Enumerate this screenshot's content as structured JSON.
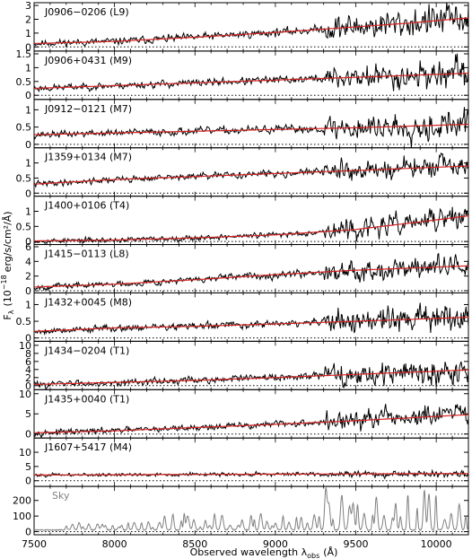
{
  "chart_data": {
    "type": "line",
    "figure_note": "",
    "xlabel_main": "Observed wavelength λ",
    "xlabel_sub": "obs",
    "xlabel_unit": "(Å)",
    "ylabel_main": "F",
    "ylabel_sub": "λ",
    "ylabel_rest": "(10",
    "ylabel_exp": "−18",
    "ylabel_unit": "erg/s/cm²/Å)",
    "xlim": [
      7500,
      10200
    ],
    "xticks": [
      7500,
      8000,
      8500,
      9000,
      9500,
      10000
    ],
    "colors": {
      "spectrum": "#000000",
      "model": "#d62020",
      "sky": "#808080",
      "zero": "#000000"
    },
    "panels": [
      {
        "id": "J0906-0206",
        "label": "J0906−0206 (L9)",
        "ylim": [
          -0.3,
          3.2
        ],
        "yticks": [
          0,
          1,
          2,
          3
        ],
        "model": [
          [
            7500,
            0.25
          ],
          [
            8000,
            0.4
          ],
          [
            8500,
            0.7
          ],
          [
            9000,
            1.05
          ],
          [
            9500,
            1.45
          ],
          [
            9800,
            1.7
          ],
          [
            10200,
            2.1
          ]
        ],
        "noise": [
          [
            7500,
            0.25
          ],
          [
            9300,
            0.3
          ],
          [
            9301,
            0.9
          ],
          [
            10200,
            1.2
          ]
        ],
        "seed": 11
      },
      {
        "id": "J0906+0431",
        "label": "J0906+0431 (M9)",
        "ylim": [
          -0.15,
          1.6
        ],
        "yticks": [
          0,
          0.5,
          1,
          1.5
        ],
        "model": [
          [
            7500,
            0.25
          ],
          [
            8000,
            0.35
          ],
          [
            8500,
            0.45
          ],
          [
            9000,
            0.55
          ],
          [
            9500,
            0.65
          ],
          [
            10200,
            0.8
          ]
        ],
        "noise": [
          [
            7500,
            0.12
          ],
          [
            9300,
            0.15
          ],
          [
            9301,
            0.4
          ],
          [
            10200,
            0.55
          ]
        ],
        "seed": 23
      },
      {
        "id": "J0912-0121",
        "label": "J0912−0121 (M7)",
        "ylim": [
          -0.1,
          1.3
        ],
        "yticks": [
          0,
          0.5,
          1
        ],
        "model": [
          [
            7500,
            0.28
          ],
          [
            8000,
            0.33
          ],
          [
            8500,
            0.38
          ],
          [
            9000,
            0.43
          ],
          [
            9500,
            0.48
          ],
          [
            10200,
            0.58
          ]
        ],
        "noise": [
          [
            7500,
            0.1
          ],
          [
            9300,
            0.12
          ],
          [
            9301,
            0.35
          ],
          [
            10200,
            0.45
          ]
        ],
        "seed": 37
      },
      {
        "id": "J1359+0134",
        "label": "J1359+0134 (M7)",
        "ylim": [
          -0.1,
          1.5
        ],
        "yticks": [
          0,
          0.5,
          1
        ],
        "model": [
          [
            7500,
            0.3
          ],
          [
            8000,
            0.45
          ],
          [
            8500,
            0.55
          ],
          [
            9000,
            0.65
          ],
          [
            9500,
            0.75
          ],
          [
            10200,
            0.9
          ]
        ],
        "noise": [
          [
            7500,
            0.1
          ],
          [
            9300,
            0.12
          ],
          [
            9301,
            0.3
          ],
          [
            10200,
            0.4
          ]
        ],
        "seed": 41
      },
      {
        "id": "J1400+0106",
        "label": "J1400+0106 (T4)",
        "ylim": [
          -0.1,
          1.5
        ],
        "yticks": [
          0,
          0.5,
          1
        ],
        "model": [
          [
            7500,
            0.02
          ],
          [
            8000,
            0.05
          ],
          [
            8500,
            0.12
          ],
          [
            9000,
            0.22
          ],
          [
            9500,
            0.4
          ],
          [
            9900,
            0.65
          ],
          [
            10200,
            0.85
          ]
        ],
        "noise": [
          [
            7500,
            0.08
          ],
          [
            9300,
            0.1
          ],
          [
            9301,
            0.3
          ],
          [
            10200,
            0.4
          ]
        ],
        "seed": 53
      },
      {
        "id": "J1415-0113",
        "label": "J1415−0113 (L8)",
        "ylim": [
          -0.3,
          6.3
        ],
        "yticks": [
          0,
          2,
          4,
          6
        ],
        "model": [
          [
            7500,
            0.5
          ],
          [
            8000,
            0.9
          ],
          [
            8500,
            1.5
          ],
          [
            9000,
            2.2
          ],
          [
            9500,
            2.8
          ],
          [
            10200,
            3.4
          ]
        ],
        "noise": [
          [
            7500,
            0.4
          ],
          [
            9300,
            0.5
          ],
          [
            9301,
            1.2
          ],
          [
            10200,
            1.6
          ]
        ],
        "seed": 67
      },
      {
        "id": "J1432+0045",
        "label": "J1432+0045 (M8)",
        "ylim": [
          -0.1,
          1.35
        ],
        "yticks": [
          0,
          0.5,
          1
        ],
        "model": [
          [
            7500,
            0.2
          ],
          [
            8000,
            0.3
          ],
          [
            8500,
            0.35
          ],
          [
            9000,
            0.42
          ],
          [
            9500,
            0.5
          ],
          [
            10200,
            0.62
          ]
        ],
        "noise": [
          [
            7500,
            0.1
          ],
          [
            9300,
            0.12
          ],
          [
            9301,
            0.35
          ],
          [
            10200,
            0.45
          ]
        ],
        "seed": 79
      },
      {
        "id": "J1434-0204",
        "label": "J1434−0204 (T1)",
        "ylim": [
          -1,
          11
        ],
        "yticks": [
          0,
          2,
          4,
          6,
          8,
          10
        ],
        "model": [
          [
            7500,
            0.3
          ],
          [
            8000,
            0.8
          ],
          [
            8500,
            1.3
          ],
          [
            9000,
            2.0
          ],
          [
            9500,
            2.8
          ],
          [
            10200,
            3.9
          ]
        ],
        "noise": [
          [
            7500,
            0.8
          ],
          [
            9300,
            1.0
          ],
          [
            9301,
            2.6
          ],
          [
            10200,
            3.2
          ]
        ],
        "seed": 83
      },
      {
        "id": "J1435+0040",
        "label": "J1435+0040 (T1)",
        "ylim": [
          -1,
          11
        ],
        "yticks": [
          0,
          5,
          10
        ],
        "model": [
          [
            7500,
            0.3
          ],
          [
            8000,
            0.8
          ],
          [
            8500,
            1.6
          ],
          [
            9000,
            2.4
          ],
          [
            9500,
            3.3
          ],
          [
            10200,
            4.8
          ]
        ],
        "noise": [
          [
            7500,
            0.7
          ],
          [
            9300,
            0.9
          ],
          [
            9301,
            2.4
          ],
          [
            10200,
            3.0
          ]
        ],
        "seed": 97
      },
      {
        "id": "J1607+5417",
        "label": "J1607+5417 (M4)",
        "ylim": [
          -2,
          15
        ],
        "yticks": [
          0,
          5,
          10
        ],
        "model": [
          [
            7500,
            2.0
          ],
          [
            8000,
            2.1
          ],
          [
            8500,
            2.2
          ],
          [
            9000,
            2.3
          ],
          [
            9500,
            2.4
          ],
          [
            10200,
            2.5
          ]
        ],
        "noise": [
          [
            7500,
            0.6
          ],
          [
            9300,
            0.7
          ],
          [
            9301,
            1.0
          ],
          [
            10200,
            1.2
          ]
        ],
        "seed": 101
      }
    ],
    "sky": {
      "label": "Sky",
      "ylim": [
        -20,
        290
      ],
      "yticks": [
        0,
        100,
        200
      ],
      "seed": 131
    }
  }
}
